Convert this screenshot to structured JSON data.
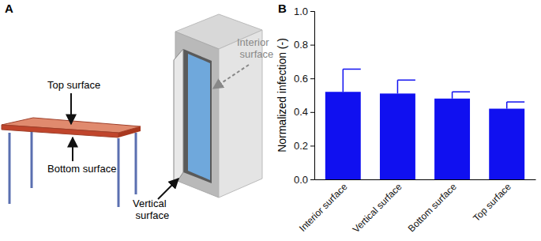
{
  "diagram": {
    "panel_label": "A",
    "table": {
      "top_label": "Top surface",
      "bottom_label": "Bottom surface"
    },
    "cabinet": {
      "vertical_label": "Vertical surface",
      "interior_label": "Interior surface"
    }
  },
  "chart_data": {
    "type": "bar",
    "panel_label": "B",
    "y_label": "Normalized infection (-)",
    "categories": [
      "Interior surface",
      "Vertical surface",
      "Bottom surface",
      "Top surface"
    ],
    "values": [
      0.52,
      0.51,
      0.48,
      0.42
    ],
    "errors": [
      0.135,
      0.08,
      0.04,
      0.04
    ],
    "color": "#1010f0",
    "ylim": [
      0,
      1
    ],
    "yticks": [
      {
        "value": 0,
        "label": "0.0"
      },
      0.2,
      0.4,
      0.6,
      0.8,
      {
        "value": 1,
        "label": "1.0"
      }
    ],
    "grid": false
  }
}
